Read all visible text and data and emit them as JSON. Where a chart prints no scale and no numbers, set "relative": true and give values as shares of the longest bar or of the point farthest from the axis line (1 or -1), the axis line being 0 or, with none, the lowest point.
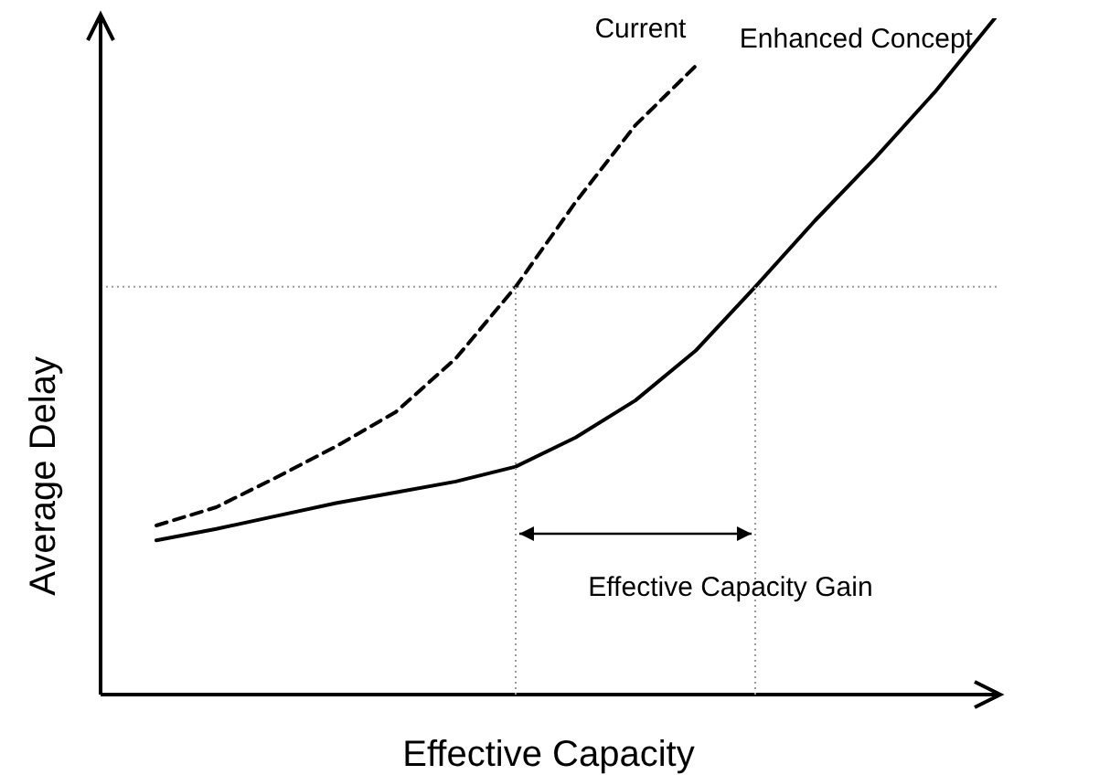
{
  "chart_data": {
    "type": "line",
    "relative": true,
    "xlabel": "Effective Capacity",
    "ylabel": "Average Delay",
    "legend": false,
    "grid": false,
    "marker": "none",
    "categories": [
      null,
      null,
      null,
      null,
      null,
      null,
      null,
      null,
      null,
      null,
      null,
      null,
      null,
      null,
      null
    ],
    "series": [
      {
        "name": "Current",
        "color": "#000000",
        "line_style": "dashed",
        "values": [
          0.25,
          0.277,
          0.321,
          0.367,
          0.418,
          0.497,
          0.603,
          0.728,
          0.842,
          0.929,
          null,
          null,
          null,
          null,
          null
        ]
      },
      {
        "name": "Enhanced Concept",
        "color": "#000000",
        "line_style": "solid",
        "values": [
          0.228,
          0.245,
          0.264,
          0.283,
          0.299,
          0.315,
          0.337,
          0.38,
          0.435,
          0.508,
          0.603,
          0.701,
          0.793,
          0.891,
          1
        ]
      }
    ],
    "ref_lines": [
      {
        "axis": "y",
        "value": 0.603,
        "color": "#999999",
        "line_style": "dotted"
      }
    ],
    "annotations": [
      "Effective Capacity Gain"
    ]
  }
}
